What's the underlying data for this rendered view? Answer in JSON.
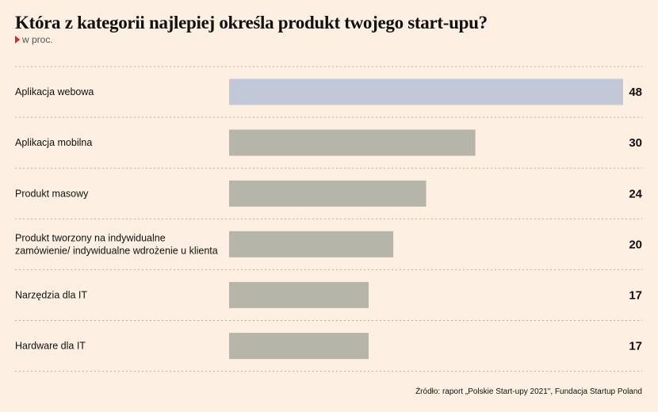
{
  "chart_data": {
    "type": "bar",
    "orientation": "horizontal",
    "title": "Która z kategorii najlepiej określa produkt twojego start-upu?",
    "subtitle": "w proc.",
    "categories": [
      [
        "Aplikacja webowa"
      ],
      [
        "Aplikacja mobilna"
      ],
      [
        "Produkt masowy"
      ],
      [
        "Produkt tworzony na indywidualne",
        "zamówienie/ indywidualne wdrożenie u klienta"
      ],
      [
        "Narzędzia dla IT"
      ],
      [
        "Hardware dla IT"
      ]
    ],
    "values": [
      48,
      30,
      24,
      20,
      17,
      17
    ],
    "xlim": [
      0,
      48
    ],
    "grid": false,
    "colors": {
      "highlight": "#c1c9d9",
      "default": "#b6b5aa",
      "separator": "#b8b0a6",
      "marker": "#e4202a"
    },
    "source": "Źródło: raport „Polskie Start-upy 2021\", Fundacja Startup Poland"
  }
}
